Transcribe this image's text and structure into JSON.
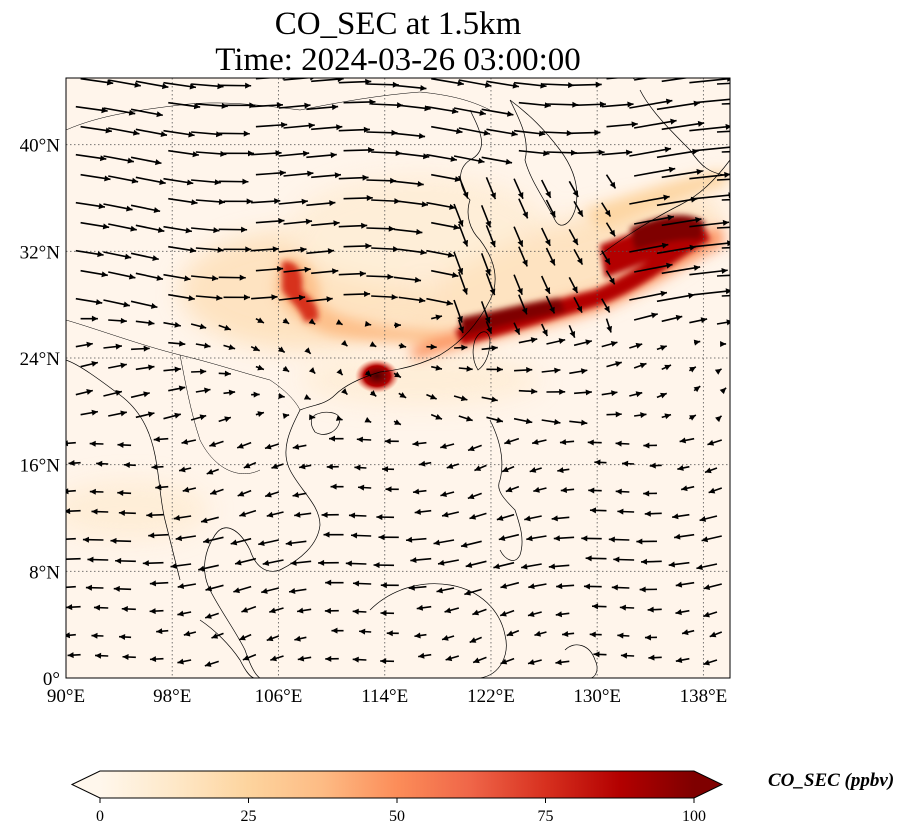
{
  "title": {
    "line1": "CO_SEC at 1.5km",
    "line2": "Time: 2024-03-26 03:00:00"
  },
  "map": {
    "extent_lon": [
      90,
      140
    ],
    "extent_lat": [
      0,
      45
    ],
    "xticks": [
      {
        "value": 90,
        "label": "90°E"
      },
      {
        "value": 98,
        "label": "98°E"
      },
      {
        "value": 106,
        "label": "106°E"
      },
      {
        "value": 114,
        "label": "114°E"
      },
      {
        "value": 122,
        "label": "122°E"
      },
      {
        "value": 130,
        "label": "130°E"
      },
      {
        "value": 138,
        "label": "138°E"
      }
    ],
    "yticks": [
      {
        "value": 0,
        "label": "0°"
      },
      {
        "value": 8,
        "label": "8°N"
      },
      {
        "value": 16,
        "label": "16°N"
      },
      {
        "value": 24,
        "label": "24°N"
      },
      {
        "value": 32,
        "label": "32°N"
      },
      {
        "value": 40,
        "label": "40°N"
      }
    ],
    "gridlines": "dotted",
    "background_color": "#fff5eb",
    "plume_color_high": "#7f0000",
    "plume_color_mid": "#d7301f",
    "plume_color_low": "#fdd49e"
  },
  "colorbar": {
    "label": "CO_SEC (ppbv)",
    "min": 0,
    "max": 100,
    "ticks": [
      {
        "value": 0,
        "label": "0"
      },
      {
        "value": 25,
        "label": "25"
      },
      {
        "value": 50,
        "label": "50"
      },
      {
        "value": 75,
        "label": "75"
      },
      {
        "value": 100,
        "label": "100"
      }
    ],
    "colormap": "OrRd",
    "colors": [
      "#fff7ec",
      "#fee8c8",
      "#fdd49e",
      "#fdbb84",
      "#fc8d59",
      "#ef6548",
      "#d7301f",
      "#b30000",
      "#7f0000"
    ]
  }
}
